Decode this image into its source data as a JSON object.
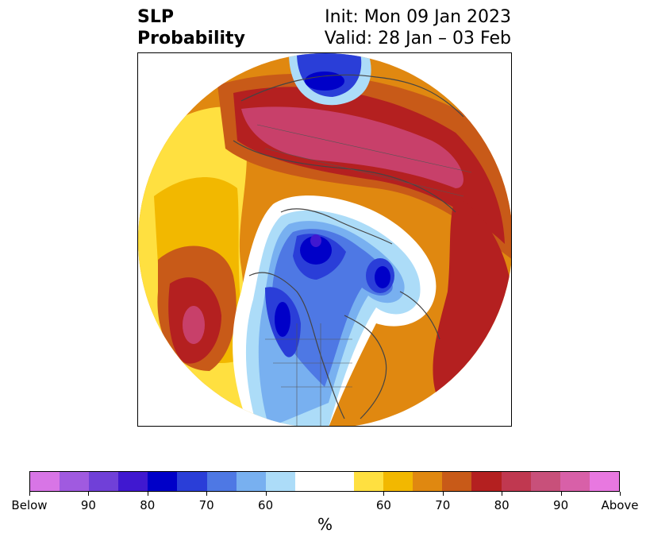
{
  "title": {
    "left_line1": "SLP",
    "left_line2": "Probability",
    "right_line1": "Init: Mon 09 Jan 2023",
    "right_line2": "Valid: 28 Jan – 03 Feb"
  },
  "colorbar": {
    "unit": "%",
    "colors": [
      "#d875e6",
      "#a05ae0",
      "#7040d8",
      "#4018d0",
      "#0000c8",
      "#2a3ed8",
      "#4e78e4",
      "#78b0f0",
      "#acdcf8",
      "#ffffff",
      "#ffffff",
      "#ffe040",
      "#f2b800",
      "#e08810",
      "#c85a18",
      "#b42020",
      "#c03850",
      "#c8507a",
      "#d860a8",
      "#e878e0"
    ],
    "tick_labels": [
      "Below",
      "90",
      "80",
      "70",
      "60",
      "60",
      "70",
      "80",
      "90",
      "Above"
    ]
  },
  "map": {
    "projection": "north-polar-stereographic",
    "colors": {
      "strong_above": "#c8406a",
      "above_80": "#b42020",
      "above_70": "#c85a18",
      "above_60": "#e08810",
      "above_50": "#f2b800",
      "above_40": "#ffe040",
      "below_40": "#acdcf8",
      "below_50": "#78b0f0",
      "below_60": "#4e78e4",
      "below_70": "#2a3ed8",
      "below_80": "#0000c8",
      "below_90": "#7040d8"
    }
  }
}
